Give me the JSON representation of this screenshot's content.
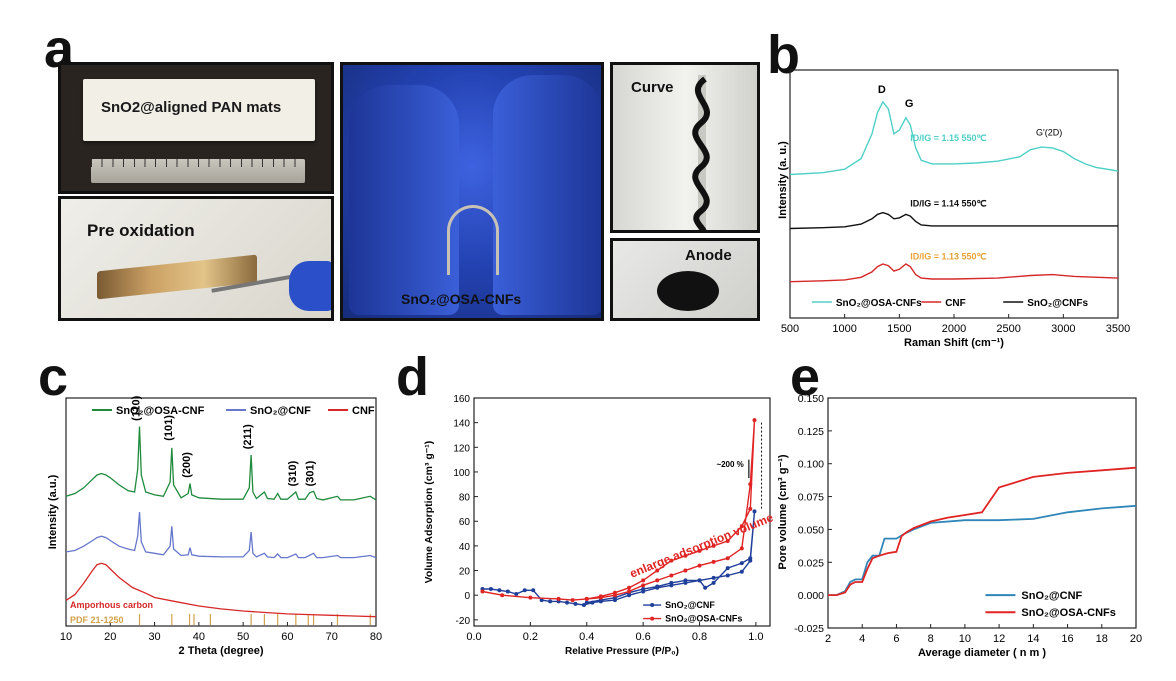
{
  "panels": {
    "a": "a",
    "b": "b",
    "c": "c",
    "d": "d",
    "e": "e"
  },
  "photos": {
    "mats_label": "SnO2@aligned PAN mats",
    "preox_label": "Pre oxidation",
    "center_label": "SnO₂@OSA-CNFs",
    "curve_label": "Curve",
    "anode_label": "Anode"
  },
  "chart_data": [
    {
      "id": "b",
      "type": "line",
      "xlabel": "Raman Shift (cm⁻¹)",
      "ylabel": "Intensity     (a. u.)",
      "xlim": [
        500,
        3500
      ],
      "xticks": [
        500,
        1000,
        1500,
        2000,
        2500,
        3000,
        3500
      ],
      "peak_labels": [
        "D",
        "G",
        "G'(2D)"
      ],
      "annotations": [
        {
          "text": "ID/IG = 1.15  550℃",
          "color": "#4fd0c6"
        },
        {
          "text": "ID/IG = 1.14  550℃",
          "color": "#111111"
        },
        {
          "text": "ID/IG = 1.13  550℃",
          "color": "#e8a33a"
        }
      ],
      "legend": [
        "SnO₂@OSA-CNFs",
        "CNF",
        "SnO₂@CNFs"
      ],
      "series": [
        {
          "name": "SnO₂@OSA-CNFs",
          "color": "#4fd0c6",
          "x": [
            500,
            800,
            1000,
            1150,
            1250,
            1300,
            1350,
            1400,
            1450,
            1500,
            1560,
            1600,
            1650,
            1700,
            1800,
            2000,
            2200,
            2400,
            2600,
            2700,
            2800,
            2900,
            3000,
            3100,
            3200,
            3300,
            3500
          ],
          "y": [
            8.1,
            8.2,
            8.4,
            9.0,
            10.4,
            11.6,
            12.2,
            11.8,
            10.4,
            10.6,
            11.3,
            10.9,
            9.6,
            8.9,
            8.7,
            8.7,
            8.75,
            8.85,
            9.1,
            9.5,
            9.65,
            9.6,
            9.4,
            9.0,
            8.7,
            8.5,
            8.3
          ]
        },
        {
          "name": "SnO₂@CNFs",
          "color": "#111111",
          "x": [
            500,
            800,
            1000,
            1150,
            1250,
            1300,
            1350,
            1400,
            1450,
            1500,
            1560,
            1600,
            1650,
            1700,
            1800,
            2000,
            2500,
            3000,
            3500
          ],
          "y": [
            5.05,
            5.1,
            5.15,
            5.3,
            5.6,
            5.85,
            5.95,
            5.85,
            5.6,
            5.65,
            5.85,
            5.75,
            5.45,
            5.25,
            5.2,
            5.2,
            5.2,
            5.2,
            5.2
          ]
        },
        {
          "name": "CNF",
          "color": "#d62828",
          "x": [
            500,
            800,
            1000,
            1150,
            1250,
            1300,
            1350,
            1400,
            1450,
            1500,
            1560,
            1600,
            1650,
            1700,
            1800,
            2000,
            2400,
            2700,
            2900,
            3100,
            3500
          ],
          "y": [
            2.05,
            2.1,
            2.15,
            2.3,
            2.6,
            2.9,
            3.05,
            2.95,
            2.65,
            2.75,
            3.05,
            2.9,
            2.45,
            2.25,
            2.2,
            2.2,
            2.25,
            2.4,
            2.45,
            2.35,
            2.25
          ]
        }
      ]
    },
    {
      "id": "c",
      "type": "line",
      "xlabel": "2 Theta (degree)",
      "ylabel": "Intensity (a.u.)",
      "xlim": [
        10,
        80
      ],
      "xticks": [
        10,
        20,
        30,
        40,
        50,
        60,
        70,
        80
      ],
      "legend": [
        "SnO₂@OSA-CNF",
        "SnO₂@CNF",
        "CNF"
      ],
      "peak_labels": [
        {
          "text": "(110)",
          "x": 26.6
        },
        {
          "text": "(101)",
          "x": 33.9
        },
        {
          "text": "(200)",
          "x": 38.0
        },
        {
          "text": "(211)",
          "x": 51.8
        },
        {
          "text": "(310)",
          "x": 61.9
        },
        {
          "text": "(301)",
          "x": 65.9
        }
      ],
      "notes": [
        "Amporhous carbon",
        "PDF 21-1250"
      ],
      "reference_lines": [
        26.6,
        33.9,
        37.9,
        38.9,
        42.6,
        51.8,
        54.8,
        57.8,
        61.9,
        64.7,
        65.9,
        71.3,
        78.7
      ],
      "series": [
        {
          "name": "SnO₂@OSA-CNF",
          "color": "#1e8a3c",
          "x": [
            10,
            12,
            14,
            16,
            17,
            18,
            19,
            20,
            22,
            24,
            25.5,
            26.2,
            26.6,
            27.0,
            28,
            30,
            32,
            33.5,
            33.9,
            34.3,
            36,
            37.6,
            38.0,
            38.4,
            40,
            45,
            50,
            51.4,
            51.8,
            52.2,
            53,
            54.8,
            55.5,
            57,
            57.8,
            58.5,
            60,
            61.9,
            62.5,
            64,
            65.0,
            65.9,
            66.6,
            68,
            71.3,
            72,
            75,
            78.7,
            80
          ],
          "y": [
            9.1,
            9.3,
            9.7,
            10.3,
            10.6,
            10.7,
            10.6,
            10.4,
            9.9,
            9.5,
            9.4,
            11.0,
            14.0,
            10.6,
            9.4,
            9.2,
            9.1,
            10.1,
            12.5,
            9.9,
            9.0,
            9.3,
            10.0,
            9.2,
            9.0,
            8.9,
            8.9,
            9.7,
            12.0,
            9.4,
            8.95,
            9.4,
            8.95,
            8.9,
            9.3,
            8.9,
            8.9,
            9.4,
            8.9,
            8.9,
            9.35,
            9.45,
            8.95,
            8.85,
            9.1,
            8.85,
            8.85,
            9.1,
            8.85
          ]
        },
        {
          "name": "SnO₂@CNF",
          "color": "#6677cc",
          "x": [
            10,
            12,
            14,
            16,
            17,
            18,
            19,
            20,
            22,
            24,
            25.5,
            26.2,
            26.6,
            27.0,
            28,
            30,
            32,
            33.5,
            33.9,
            34.3,
            36,
            37.6,
            38.0,
            38.4,
            40,
            45,
            50,
            51.4,
            51.8,
            52.2,
            53,
            54.8,
            55.5,
            57,
            57.8,
            58.5,
            60,
            61.9,
            62.5,
            64,
            65.9,
            66.6,
            68,
            71.3,
            72,
            75,
            78.7,
            80
          ],
          "y": [
            5.2,
            5.3,
            5.6,
            6.0,
            6.2,
            6.3,
            6.2,
            6.0,
            5.6,
            5.4,
            5.3,
            6.3,
            8.0,
            5.9,
            5.2,
            5.1,
            5.0,
            5.6,
            7.0,
            5.4,
            4.95,
            5.0,
            5.5,
            5.0,
            4.9,
            4.85,
            4.85,
            5.3,
            6.6,
            5.1,
            4.85,
            5.1,
            4.85,
            4.8,
            5.05,
            4.8,
            4.8,
            5.05,
            4.8,
            4.8,
            5.1,
            4.8,
            4.8,
            4.95,
            4.8,
            4.8,
            4.95,
            4.8
          ]
        },
        {
          "name": "CNF",
          "color": "#d62828",
          "x": [
            10,
            12,
            14,
            16,
            17,
            18,
            19,
            20,
            22,
            25,
            28,
            30,
            35,
            40,
            45,
            50,
            55,
            60,
            65,
            70,
            75,
            80
          ],
          "y": [
            1.8,
            2.2,
            3.0,
            3.9,
            4.3,
            4.4,
            4.3,
            4.0,
            3.4,
            2.7,
            2.3,
            2.0,
            1.7,
            1.4,
            1.2,
            1.05,
            0.95,
            0.85,
            0.8,
            0.75,
            0.7,
            0.65
          ]
        }
      ]
    },
    {
      "id": "d",
      "type": "line",
      "xlabel": "Relative Pressure (P/P₀)",
      "ylabel": "Volume Adsorption (cm³ g⁻¹)",
      "xlim": [
        0.0,
        1.05
      ],
      "ylim": [
        -25,
        160
      ],
      "xticks": [
        0.0,
        0.2,
        0.4,
        0.6,
        0.8,
        1.0
      ],
      "yticks": [
        -20,
        0,
        20,
        40,
        60,
        80,
        100,
        120,
        140,
        160
      ],
      "annotations": [
        "enlarge adsorption volume",
        "~200 %"
      ],
      "legend": [
        "SnO₂@CNF",
        "SnO₂@OSA-CNFs"
      ],
      "series": [
        {
          "name": "SnO₂@CNF",
          "color": "#1f3f9a",
          "x": [
            0.03,
            0.06,
            0.09,
            0.12,
            0.15,
            0.18,
            0.21,
            0.24,
            0.27,
            0.3,
            0.33,
            0.36,
            0.39,
            0.42,
            0.45,
            0.5,
            0.55,
            0.6,
            0.65,
            0.7,
            0.75,
            0.8,
            0.85,
            0.9,
            0.95,
            0.98,
            0.995,
            0.98,
            0.95,
            0.9,
            0.85,
            0.82,
            0.8,
            0.75,
            0.7,
            0.65,
            0.6,
            0.55,
            0.5,
            0.45,
            0.4
          ],
          "y": [
            5,
            5,
            4,
            3,
            1,
            4,
            4,
            -4,
            -5,
            -5,
            -6,
            -7,
            -8,
            -6,
            -5,
            -4,
            0,
            3,
            6,
            8,
            10,
            12,
            14,
            16,
            19,
            28,
            68,
            30,
            26,
            22,
            10,
            6,
            12,
            12,
            10,
            7,
            5,
            2,
            -2,
            -4,
            -6
          ]
        },
        {
          "name": "SnO₂@OSA-CNFs",
          "color": "#e02424",
          "x": [
            0.03,
            0.1,
            0.2,
            0.3,
            0.35,
            0.4,
            0.45,
            0.5,
            0.55,
            0.6,
            0.65,
            0.7,
            0.75,
            0.8,
            0.85,
            0.9,
            0.95,
            0.98,
            0.995,
            0.98,
            0.95,
            0.9,
            0.85,
            0.8,
            0.75,
            0.7,
            0.65,
            0.6,
            0.55,
            0.5,
            0.45,
            0.4
          ],
          "y": [
            3,
            0,
            -2,
            -3,
            -4,
            -3,
            -2,
            0,
            3,
            8,
            12,
            16,
            20,
            24,
            27,
            30,
            38,
            90,
            142,
            70,
            56,
            44,
            40,
            36,
            32,
            28,
            20,
            12,
            6,
            2,
            -1,
            -3
          ]
        }
      ]
    },
    {
      "id": "e",
      "type": "line",
      "xlabel": "Average diameter ( n m )",
      "ylabel": "Pore volume (cm³ g⁻¹)",
      "xlim": [
        2,
        20
      ],
      "ylim": [
        -0.025,
        0.15
      ],
      "xticks": [
        2,
        4,
        6,
        8,
        10,
        12,
        14,
        16,
        18,
        20
      ],
      "yticks": [
        -0.025,
        0.0,
        0.025,
        0.05,
        0.075,
        0.1,
        0.125,
        0.15
      ],
      "legend": [
        "SnO₂@CNF",
        "SnO₂@OSA-CNFs"
      ],
      "series": [
        {
          "name": "SnO₂@CNF",
          "color": "#2f86b8",
          "x": [
            2,
            2.5,
            3,
            3.3,
            3.6,
            4,
            4.3,
            4.6,
            5,
            5.3,
            5.6,
            6,
            6.5,
            7,
            8,
            10,
            12,
            14,
            16,
            18,
            20
          ],
          "y": [
            0,
            0,
            0.003,
            0.01,
            0.012,
            0.012,
            0.025,
            0.03,
            0.03,
            0.043,
            0.043,
            0.043,
            0.047,
            0.05,
            0.055,
            0.057,
            0.057,
            0.058,
            0.063,
            0.066,
            0.068
          ]
        },
        {
          "name": "SnO₂@OSA-CNFs",
          "color": "#e02424",
          "x": [
            2,
            2.5,
            3,
            3.3,
            3.6,
            4,
            4.3,
            4.6,
            5,
            5.5,
            6,
            6.3,
            6.6,
            7,
            8,
            9,
            10,
            11,
            12,
            14,
            16,
            18,
            20
          ],
          "y": [
            0,
            0,
            0.002,
            0.008,
            0.01,
            0.01,
            0.02,
            0.028,
            0.03,
            0.032,
            0.033,
            0.045,
            0.048,
            0.051,
            0.056,
            0.059,
            0.061,
            0.063,
            0.082,
            0.09,
            0.093,
            0.095,
            0.097
          ]
        }
      ]
    }
  ]
}
